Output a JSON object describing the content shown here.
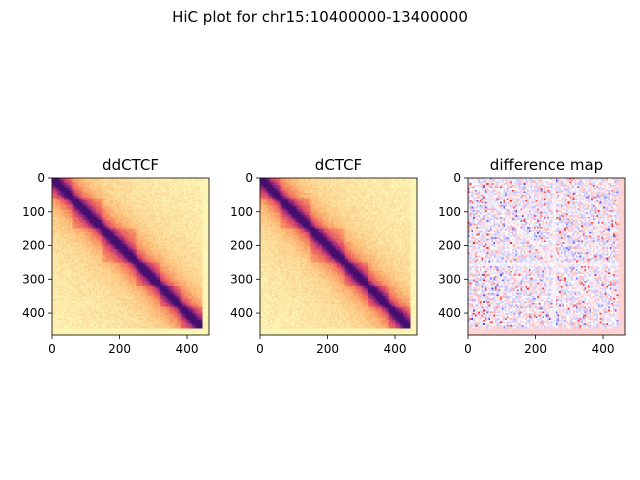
{
  "figure": {
    "suptitle": "HiC plot for chr15:10400000-13400000"
  },
  "chart_data": [
    {
      "type": "heatmap",
      "title": "ddCTCF",
      "colormap": "magma_r",
      "extent": [
        0,
        465
      ],
      "xlim": [
        0,
        465
      ],
      "ylim": [
        465,
        0
      ],
      "xticks": [
        0,
        200,
        400
      ],
      "yticks": [
        0,
        100,
        200,
        300,
        400
      ],
      "tad_boundaries": [
        0,
        60,
        150,
        250,
        320,
        380,
        445
      ],
      "empty_tail_start": 445
    },
    {
      "type": "heatmap",
      "title": "dCTCF",
      "colormap": "magma_r",
      "extent": [
        0,
        465
      ],
      "xlim": [
        0,
        465
      ],
      "ylim": [
        465,
        0
      ],
      "xticks": [
        0,
        200,
        400
      ],
      "yticks": [
        0,
        100,
        200,
        300,
        400
      ],
      "tad_boundaries": [
        0,
        60,
        150,
        250,
        320,
        380,
        445
      ],
      "empty_tail_start": 445
    },
    {
      "type": "heatmap",
      "title": "difference map",
      "colormap": "bwr",
      "extent": [
        0,
        465
      ],
      "xlim": [
        0,
        465
      ],
      "ylim": [
        465,
        0
      ],
      "xticks": [
        0,
        200,
        400
      ],
      "yticks": [
        0,
        100,
        200,
        300,
        400
      ],
      "cross_line": 255,
      "empty_tail_start": 445
    }
  ]
}
